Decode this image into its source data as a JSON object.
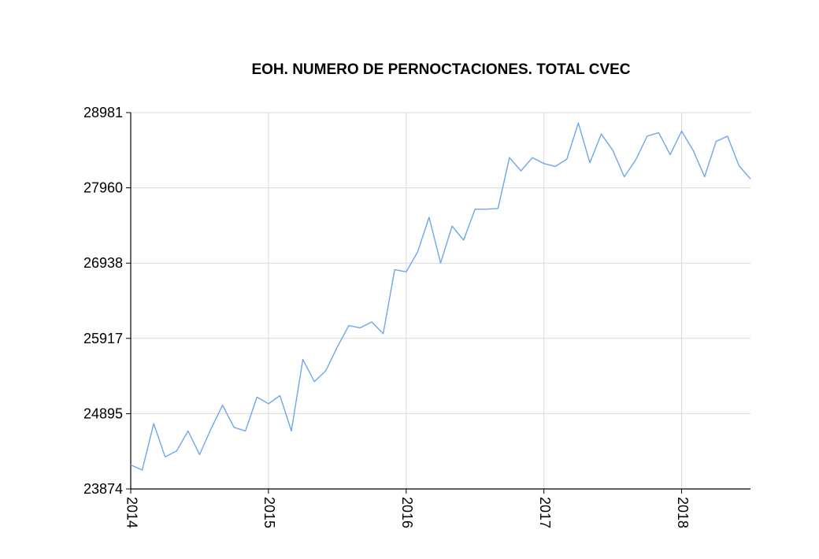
{
  "chart_data": {
    "type": "line",
    "title": "EOH. NUMERO DE PERNOCTACIONES. TOTAL CVEC",
    "xlabel": "",
    "ylabel": "",
    "ylim": [
      23874,
      28981
    ],
    "yticks": [
      23874,
      24895,
      25917,
      26938,
      27960,
      28981
    ],
    "xticks": [
      2014,
      2015,
      2016,
      2017,
      2018
    ],
    "xlim": [
      2014,
      2018.5
    ],
    "grid": true,
    "legend": "none",
    "line_color": "#6ea6ec",
    "grid_color": "#d9d9d9",
    "series": [
      {
        "x": [
          2014.0,
          2014.0833,
          2014.1667,
          2014.25,
          2014.3333,
          2014.4167,
          2014.5,
          2014.5833,
          2014.6667,
          2014.75,
          2014.8333,
          2014.9167,
          2015.0,
          2015.0833,
          2015.1667,
          2015.25,
          2015.3333,
          2015.4167,
          2015.5,
          2015.5833,
          2015.6667,
          2015.75,
          2015.8333,
          2015.9167,
          2016.0,
          2016.0833,
          2016.1667,
          2016.25,
          2016.3333,
          2016.4167,
          2016.5,
          2016.5833,
          2016.6667,
          2016.75,
          2016.8333,
          2016.9167,
          2017.0,
          2017.0833,
          2017.1667,
          2017.25,
          2017.3333,
          2017.4167,
          2017.5,
          2017.5833,
          2017.6667,
          2017.75,
          2017.8333,
          2017.9167,
          2018.0,
          2018.0833,
          2018.1667,
          2018.25,
          2018.3333,
          2018.4167,
          2018.5
        ],
        "values": [
          24200,
          24130,
          24760,
          24310,
          24390,
          24660,
          24340,
          24690,
          25010,
          24710,
          24660,
          25120,
          25030,
          25140,
          24660,
          25630,
          25330,
          25480,
          25800,
          26090,
          26060,
          26140,
          25980,
          26850,
          26820,
          27090,
          27560,
          26940,
          27440,
          27250,
          27670,
          27670,
          27680,
          28370,
          28190,
          28370,
          28290,
          28250,
          28350,
          28840,
          28300,
          28690,
          28470,
          28110,
          28340,
          28660,
          28710,
          28410,
          28730,
          28470,
          28110,
          28590,
          28660,
          28260,
          28080
        ]
      }
    ]
  }
}
